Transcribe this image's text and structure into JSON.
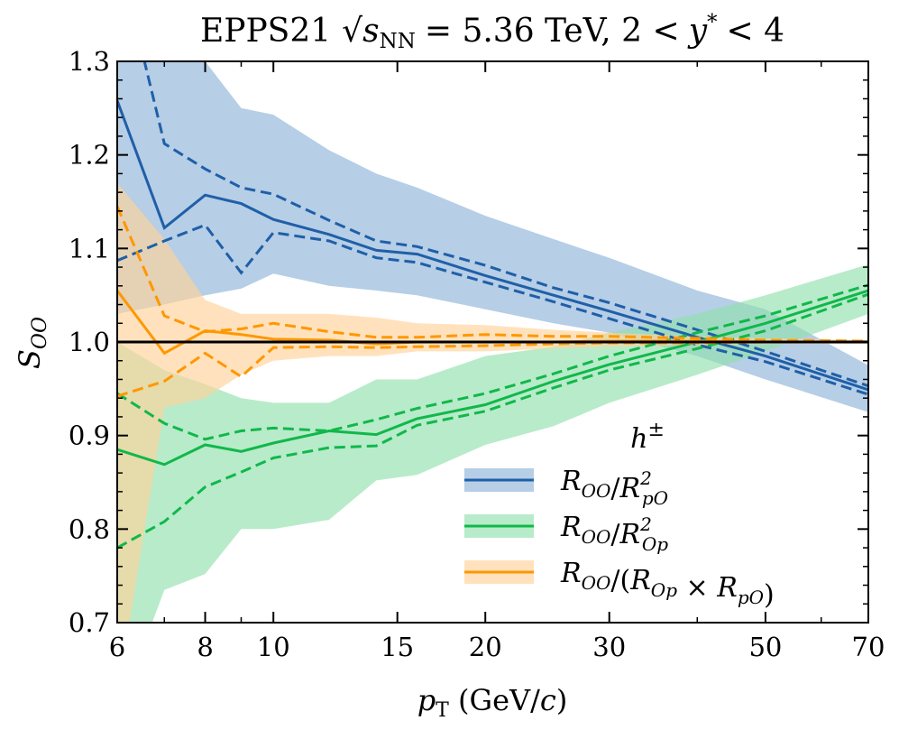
{
  "chart_data": {
    "type": "line",
    "title": {
      "text": "EPPS21 √sNN = 5.36 TeV, 2 < y* < 4",
      "part1": "EPPS21",
      "sqrt": "√",
      "s": "s",
      "nn": "NN",
      "part2": "= 5.36 TeV, 2 <",
      "y": "y",
      "star": "*",
      "part3": "< 4"
    },
    "xlabel": {
      "text": "pT (GeV/c)",
      "p": "p",
      "t": "T",
      "unit_open": " (GeV/",
      "c": "c",
      "unit_close": ")"
    },
    "ylabel": {
      "text": "SOO",
      "s": "S",
      "sub": "OO"
    },
    "x_scale": "log",
    "xlim": [
      6,
      70
    ],
    "ylim": [
      0.7,
      1.3
    ],
    "x_ticks": [
      6,
      8,
      10,
      15,
      20,
      30,
      50,
      70
    ],
    "y_ticks": [
      0.7,
      0.8,
      0.9,
      1.0,
      1.1,
      1.2,
      1.3
    ],
    "reference_line": 1.0,
    "grid": false,
    "legend": {
      "placement": "bottom-right",
      "title": "h±",
      "title_base": "h",
      "title_sup": "±"
    },
    "x": [
      6,
      7,
      8,
      9,
      10,
      12,
      14,
      16,
      20,
      25,
      30,
      40,
      50,
      70
    ],
    "series": [
      {
        "name": "ROO/R²pO",
        "color": "#1f5fa8",
        "band_color": "#8fb3d9",
        "legend_parts": [
          [
            "R",
            "OO",
            ""
          ],
          [
            "/",
            "",
            ""
          ],
          [
            "R",
            "pO",
            "2"
          ]
        ],
        "central": [
          1.258,
          1.122,
          1.157,
          1.148,
          1.131,
          1.115,
          1.098,
          1.094,
          1.071,
          1.05,
          1.033,
          1.005,
          0.985,
          0.949
        ],
        "dashed_upper": [
          1.42,
          1.212,
          1.185,
          1.165,
          1.158,
          1.13,
          1.108,
          1.102,
          1.082,
          1.058,
          1.042,
          1.013,
          0.99,
          0.953
        ],
        "dashed_lower": [
          1.087,
          1.108,
          1.125,
          1.074,
          1.117,
          1.108,
          1.09,
          1.085,
          1.064,
          1.043,
          1.025,
          0.997,
          0.979,
          0.944
        ],
        "band_upper": [
          1.45,
          1.37,
          1.3,
          1.25,
          1.243,
          1.205,
          1.18,
          1.165,
          1.135,
          1.11,
          1.09,
          1.055,
          1.035,
          0.975
        ],
        "band_lower": [
          1.03,
          1.04,
          1.05,
          1.057,
          1.073,
          1.06,
          1.055,
          1.05,
          1.035,
          1.02,
          1.01,
          0.985,
          0.96,
          0.925
        ]
      },
      {
        "name": "ROO/R²Op",
        "color": "#10b84a",
        "band_color": "#92e0ad",
        "legend_parts": [
          [
            "R",
            "OO",
            ""
          ],
          [
            "/",
            "",
            ""
          ],
          [
            "R",
            "Op",
            "2"
          ]
        ],
        "central": [
          0.885,
          0.869,
          0.89,
          0.883,
          0.892,
          0.905,
          0.901,
          0.918,
          0.933,
          0.958,
          0.976,
          1.0,
          1.02,
          1.055
        ],
        "dashed_upper": [
          0.945,
          0.913,
          0.896,
          0.905,
          0.908,
          0.905,
          0.917,
          0.929,
          0.945,
          0.966,
          0.985,
          1.01,
          1.028,
          1.061
        ],
        "dashed_lower": [
          0.78,
          0.808,
          0.845,
          0.861,
          0.876,
          0.887,
          0.889,
          0.911,
          0.926,
          0.951,
          0.97,
          0.993,
          1.012,
          1.051
        ],
        "band_upper": [
          1.0,
          0.97,
          0.955,
          0.94,
          0.935,
          0.935,
          0.96,
          0.96,
          0.985,
          0.995,
          1.01,
          1.03,
          1.05,
          1.083
        ],
        "band_lower": [
          0.6,
          0.735,
          0.752,
          0.8,
          0.8,
          0.81,
          0.852,
          0.858,
          0.89,
          0.91,
          0.935,
          0.965,
          0.99,
          1.03
        ]
      },
      {
        "name": "ROO/(ROp × RpO)",
        "color": "#ff9700",
        "band_color": "#ffd29a",
        "legend_parts": [
          [
            "R",
            "OO",
            ""
          ],
          [
            "/(",
            "",
            ""
          ],
          [
            "R",
            "Op",
            ""
          ],
          [
            " × ",
            "",
            ""
          ],
          [
            "R",
            "pO",
            ""
          ],
          [
            ")",
            "",
            ""
          ]
        ],
        "central": [
          1.055,
          0.988,
          1.012,
          1.008,
          1.003,
          1.002,
          0.998,
          1.0,
          1.0,
          1.0,
          1.001,
          1.001,
          1.0,
          1.0
        ],
        "dashed_upper": [
          1.145,
          1.028,
          1.011,
          1.014,
          1.02,
          1.011,
          1.005,
          1.005,
          1.008,
          1.006,
          1.006,
          1.004,
          1.002,
          1.001
        ],
        "dashed_lower": [
          0.942,
          0.958,
          0.988,
          0.963,
          0.994,
          0.995,
          0.994,
          0.995,
          0.996,
          0.998,
          0.999,
          0.999,
          1.0,
          1.0
        ],
        "band_upper": [
          1.17,
          1.11,
          1.045,
          1.03,
          1.03,
          1.03,
          1.026,
          1.02,
          1.018,
          1.013,
          1.01,
          1.006,
          1.004,
          1.002
        ],
        "band_lower": [
          0.62,
          0.93,
          0.94,
          0.965,
          0.98,
          0.985,
          0.985,
          0.99,
          0.99,
          0.993,
          0.995,
          0.997,
          0.998,
          0.998
        ]
      }
    ]
  }
}
